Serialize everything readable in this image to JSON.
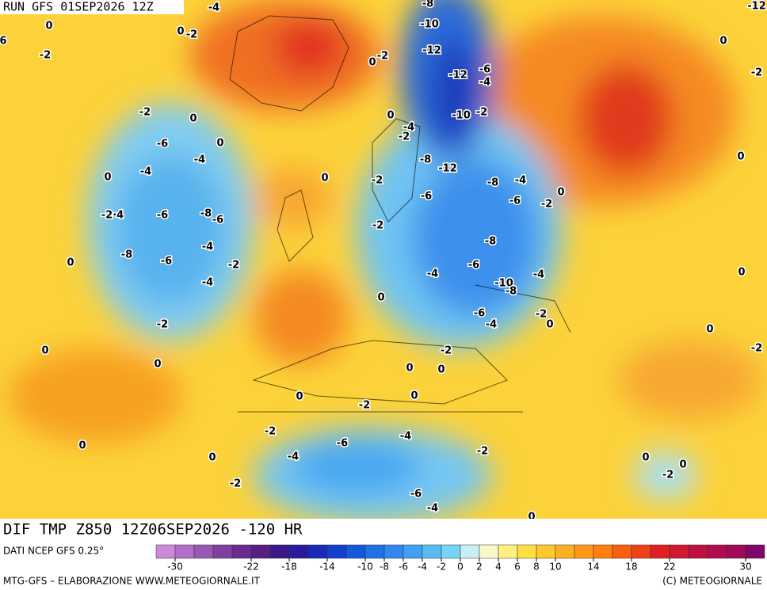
{
  "header": {
    "run": "RUN GFS 01SEP2026 12Z"
  },
  "map": {
    "contour_labels": [
      "-2",
      "0",
      "-6",
      "0",
      "-4",
      "-4",
      "0",
      "-2·4",
      "-6",
      "-8",
      "-6",
      "-4",
      "-8",
      "-6",
      "-2",
      "0",
      "-4",
      "-2",
      "0",
      "0",
      "-10",
      "-12",
      "-12",
      "-6",
      "-4",
      "-10",
      "-2",
      "-8",
      "-12",
      "-8",
      "-4",
      "-6",
      "-6",
      "-2",
      "0",
      "-8",
      "-6",
      "-4",
      "-4",
      "-10",
      "-8",
      "-6",
      "-4",
      "-2",
      "0",
      "-2",
      "0",
      "0",
      "0",
      "-2",
      "0",
      "-2",
      "-6",
      "-4",
      "-4",
      "-2",
      "0",
      "-2",
      "-6",
      "-4",
      "-2",
      "0",
      "0",
      "0",
      "-2",
      "0",
      "-2",
      "-2",
      "0",
      "0",
      "0",
      "0",
      "-2",
      "-12",
      "-4",
      "-8",
      "0",
      "0",
      "-2",
      "-2",
      "0",
      "-2",
      "0",
      "-4",
      "-2",
      "-2",
      "0",
      "-2",
      "0",
      "6"
    ]
  },
  "footer": {
    "title": "DIF TMP Z850 12Z06SEP2026 -120 HR",
    "source": "DATI NCEP GFS 0.25°",
    "credit_left": "MTG-GFS – ELABORAZIONE WWW.METEOGIORNALE.IT",
    "credit_right": "(C) METEOGIORNALE"
  },
  "colorbar": {
    "range": [
      -32,
      32
    ],
    "ticks": [
      -30,
      -22,
      -18,
      -14,
      -10,
      -8,
      -6,
      -4,
      -2,
      0,
      2,
      4,
      6,
      8,
      10,
      14,
      18,
      22,
      30
    ],
    "colors": [
      "#cc88dd",
      "#b070c8",
      "#9858b4",
      "#8040a0",
      "#6a2c90",
      "#552080",
      "#3a1a8a",
      "#2a1aa0",
      "#1a2ab8",
      "#1040cc",
      "#1458dc",
      "#2070e6",
      "#3088ee",
      "#40a0f2",
      "#58bcf4",
      "#78d4f4",
      "#c8eef6",
      "#f8f8c8",
      "#fff080",
      "#ffe040",
      "#ffc830",
      "#ffb020",
      "#ff9818",
      "#ff8010",
      "#f86010",
      "#f04018",
      "#e02020",
      "#d01830",
      "#c01040",
      "#b00c50",
      "#a00a58",
      "#80066a"
    ]
  }
}
